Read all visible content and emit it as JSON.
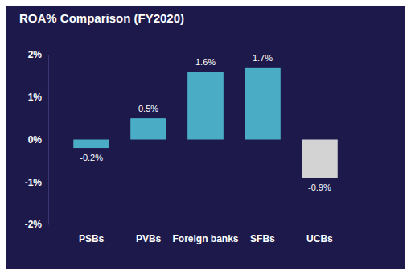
{
  "chart_data": {
    "type": "bar",
    "title": "ROA% Comparison (FY2020)",
    "categories": [
      "PSBs",
      "PVBs",
      "Foreign banks",
      "SFBs",
      "UCBs"
    ],
    "values": [
      -0.2,
      0.5,
      1.6,
      1.7,
      -0.9
    ],
    "value_labels": [
      "-0.2%",
      "0.5%",
      "1.6%",
      "1.7%",
      "-0.9%"
    ],
    "colors": [
      "#4bacc6",
      "#4bacc6",
      "#4bacc6",
      "#4bacc6",
      "#d3d3d3"
    ],
    "ylim": [
      -2,
      2
    ],
    "yticks": [
      {
        "value": -2,
        "label": "-2%"
      },
      {
        "value": -1,
        "label": "-1%"
      },
      {
        "value": 0,
        "label": "0%"
      },
      {
        "value": 1,
        "label": "1%"
      },
      {
        "value": 2,
        "label": "2%"
      }
    ],
    "grid": false,
    "data_labels": true
  }
}
